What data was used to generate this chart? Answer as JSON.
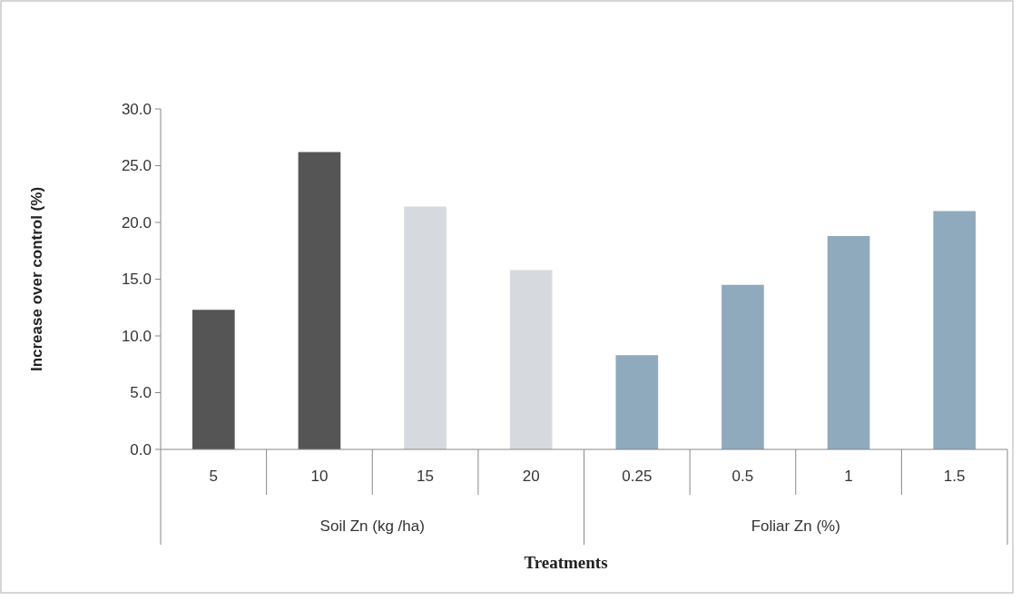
{
  "chart_data": {
    "type": "bar",
    "xlabel": "Treatments",
    "ylabel": "Increase over control (%)",
    "categories": [
      "5",
      "10",
      "15",
      "20",
      "0.25",
      "0.5",
      "1",
      "1.5"
    ],
    "values": [
      12.3,
      26.2,
      21.4,
      15.8,
      8.3,
      14.5,
      18.8,
      21.0
    ],
    "colors": [
      "#555555",
      "#555555",
      "#d6dade",
      "#d6dade",
      "#8faabd",
      "#8faabd",
      "#8faabd",
      "#8faabd"
    ],
    "annotations": [
      "Soil Zn (kg /ha)",
      "Foliar Zn (%)"
    ],
    "ylim": [
      0,
      30
    ],
    "yticks": [
      {
        "value": 0,
        "label": "0.0"
      },
      {
        "value": 5,
        "label": "5.0"
      },
      {
        "value": 10,
        "label": "10.0"
      },
      {
        "value": 15,
        "label": "15.0"
      },
      {
        "value": 20,
        "label": "20.0"
      },
      {
        "value": 25,
        "label": "25.0"
      },
      {
        "value": 30,
        "label": "30.0"
      }
    ],
    "grid": false
  }
}
